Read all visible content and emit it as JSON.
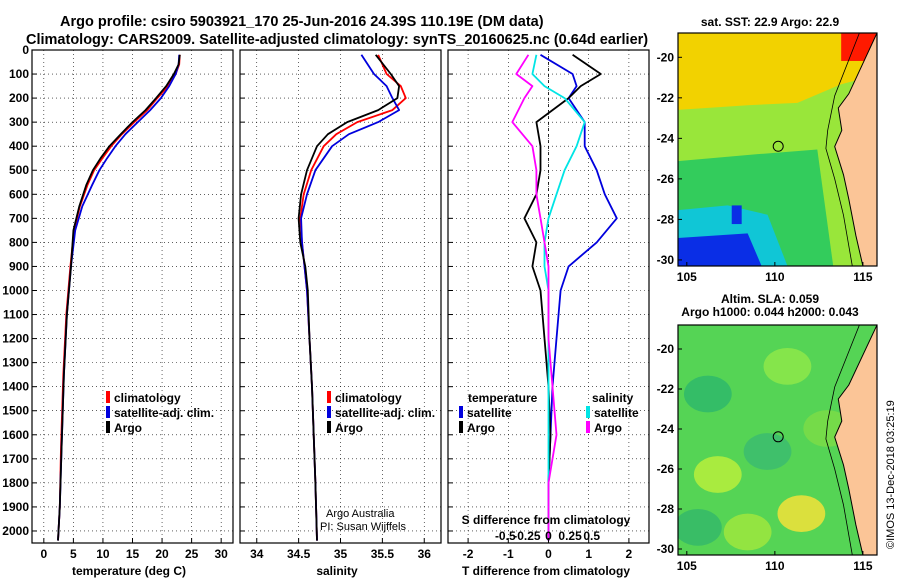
{
  "header": {
    "title_line1": "Argo profile: csiro 5903921_170 25-Jun-2016 24.39S 110.19E (DM data)",
    "title_line2": "Climatology: CARS2009. Satellite-adjusted climatology: synTS_20160625.nc (0.64d earlier)"
  },
  "colors": {
    "climatology": "#ff0000",
    "satellite_adj": "#0000dd",
    "argo": "#000000",
    "sat_salinity": "#00e5e5",
    "argo_salinity": "#ff00ff",
    "land": "#fbc597",
    "sst_high": "#f2d200",
    "sst_mid": "#99e63a",
    "sst_low": "#33cc5c",
    "sst_cold": "#0a2ee6",
    "sla_base": "#55d455"
  },
  "legends": {
    "temperature": [
      {
        "label": "climatology",
        "color_key": "climatology"
      },
      {
        "label": "satellite-adj. clim.",
        "color_key": "satellite_adj"
      },
      {
        "label": "Argo",
        "color_key": "argo"
      }
    ],
    "salinity": [
      {
        "label": "climatology",
        "color_key": "climatology"
      },
      {
        "label": "satellite-adj. clim.",
        "color_key": "satellite_adj"
      },
      {
        "label": "Argo",
        "color_key": "argo"
      }
    ],
    "difference": {
      "temperature_title": "temperature",
      "salinity_title": "salinity",
      "temperature_items": [
        {
          "label": "satellite",
          "color_key": "satellite_adj"
        },
        {
          "label": "Argo",
          "color_key": "argo"
        }
      ],
      "salinity_items": [
        {
          "label": "satellite",
          "color_key": "sat_salinity"
        },
        {
          "label": "Argo",
          "color_key": "argo_salinity"
        }
      ]
    }
  },
  "credits": {
    "line1": "Argo Australia",
    "line2": "PI: Susan Wijffels",
    "stamp": "©IMOS 13-Dec-2018 03:25:19"
  },
  "maps": {
    "sst_title": "sat. SST: 22.9 Argo: 22.9",
    "sla_title1": "Altim. SLA: 0.059",
    "sla_title2": "Argo h1000: 0.044 h2000: 0.043",
    "float_position": {
      "lon": 110.19,
      "lat": -24.39
    }
  },
  "chart_data": [
    {
      "type": "line",
      "panel": "temperature",
      "xlabel": "temperature (deg C)",
      "ylabel": "",
      "xlim": [
        -2,
        32
      ],
      "ylim": [
        2050,
        0
      ],
      "xticks": [
        0,
        5,
        10,
        15,
        20,
        25,
        30
      ],
      "yticks": [
        0,
        100,
        200,
        300,
        400,
        500,
        600,
        700,
        800,
        900,
        1000,
        1100,
        1200,
        1300,
        1400,
        1500,
        1600,
        1700,
        1800,
        1900,
        2000
      ],
      "series": [
        {
          "name": "climatology",
          "color_key": "climatology",
          "x": [
            23.0,
            22.9,
            22.3,
            21.0,
            19.2,
            17.5,
            15.3,
            13.2,
            11.4,
            9.9,
            8.5,
            7.4,
            6.1,
            5.1,
            4.5,
            3.8,
            3.3,
            2.9,
            2.7,
            2.4
          ],
          "y": [
            20,
            60,
            100,
            150,
            200,
            250,
            300,
            350,
            400,
            450,
            500,
            560,
            650,
            750,
            900,
            1100,
            1350,
            1650,
            1900,
            2040
          ]
        },
        {
          "name": "satellite-adj. clim.",
          "color_key": "satellite_adj",
          "x": [
            22.9,
            22.8,
            22.3,
            21.2,
            19.8,
            18.0,
            15.9,
            13.8,
            12.1,
            10.7,
            9.4,
            8.2,
            6.5,
            5.3,
            4.6,
            3.9,
            3.4,
            3.0,
            2.7,
            2.4
          ],
          "y": [
            20,
            60,
            100,
            150,
            200,
            250,
            300,
            350,
            400,
            450,
            500,
            560,
            650,
            750,
            900,
            1100,
            1350,
            1650,
            1900,
            2040
          ]
        },
        {
          "name": "Argo",
          "color_key": "argo",
          "x": [
            23.0,
            22.8,
            22.0,
            20.7,
            19.0,
            17.2,
            15.0,
            13.0,
            11.1,
            9.6,
            8.3,
            7.2,
            6.0,
            5.0,
            4.6,
            3.9,
            3.4,
            3.0,
            2.7,
            2.4
          ],
          "y": [
            20,
            60,
            100,
            150,
            200,
            250,
            300,
            350,
            400,
            450,
            500,
            560,
            650,
            750,
            900,
            1100,
            1350,
            1650,
            1900,
            2040
          ]
        }
      ]
    },
    {
      "type": "line",
      "panel": "salinity",
      "xlabel": "salinity",
      "ylabel": "",
      "xlim": [
        33.8,
        36.2
      ],
      "ylim": [
        2050,
        0
      ],
      "xticks": [
        34,
        34.5,
        35,
        35.5,
        36
      ],
      "series": [
        {
          "name": "climatology",
          "color_key": "climatology",
          "x": [
            35.45,
            35.55,
            35.72,
            35.78,
            35.62,
            35.2,
            34.95,
            34.8,
            34.65,
            34.56,
            34.52,
            34.54,
            34.57,
            34.6,
            34.63,
            34.66,
            34.68,
            34.7,
            34.72
          ],
          "y": [
            20,
            100,
            150,
            200,
            250,
            300,
            350,
            400,
            500,
            600,
            700,
            800,
            900,
            1000,
            1200,
            1400,
            1600,
            1800,
            2040
          ]
        },
        {
          "name": "satellite-adj. clim.",
          "color_key": "satellite_adj",
          "x": [
            35.25,
            35.4,
            35.55,
            35.62,
            35.7,
            35.45,
            35.1,
            34.9,
            34.7,
            34.6,
            34.53,
            34.54,
            34.57,
            34.6,
            34.63,
            34.66,
            34.68,
            34.7,
            34.72
          ],
          "y": [
            20,
            100,
            150,
            200,
            250,
            300,
            350,
            400,
            500,
            600,
            700,
            800,
            900,
            1000,
            1200,
            1400,
            1600,
            1800,
            2040
          ]
        },
        {
          "name": "Argo",
          "color_key": "argo",
          "x": [
            35.42,
            35.6,
            35.7,
            35.68,
            35.45,
            35.08,
            34.85,
            34.72,
            34.6,
            34.53,
            34.5,
            34.52,
            34.58,
            34.61,
            34.63,
            34.66,
            34.68,
            34.7,
            34.72
          ],
          "y": [
            20,
            100,
            150,
            200,
            250,
            300,
            350,
            400,
            500,
            600,
            700,
            800,
            900,
            1000,
            1200,
            1400,
            1600,
            1800,
            2040
          ]
        }
      ]
    },
    {
      "type": "line",
      "panel": "difference",
      "xlabel": "T difference from climatology",
      "x2label": "S difference from climatology",
      "xlim": [
        -2.5,
        2.5
      ],
      "ylim": [
        2050,
        0
      ],
      "xticks": [
        -2,
        -1,
        0,
        1,
        2
      ],
      "x2ticks": [
        -0.5,
        -0.25,
        0,
        0.25,
        0.5
      ],
      "series": [
        {
          "name": "temperature satellite",
          "color_key": "satellite_adj",
          "x": [
            -0.2,
            0.6,
            0.7,
            0.5,
            0.9,
            0.9,
            1.2,
            1.4,
            1.7,
            1.2,
            0.5,
            0.3,
            0.2,
            0.1,
            0.05,
            0.0,
            0.0
          ],
          "y": [
            20,
            100,
            150,
            200,
            300,
            400,
            500,
            600,
            700,
            800,
            900,
            1000,
            1200,
            1400,
            1600,
            1800,
            2040
          ]
        },
        {
          "name": "temperature Argo",
          "color_key": "argo",
          "x": [
            0.6,
            1.3,
            0.8,
            0.5,
            -0.3,
            -0.2,
            -0.2,
            -0.3,
            -0.6,
            -0.3,
            -0.4,
            -0.2,
            -0.1,
            0.0,
            0.05,
            0.0,
            0.0
          ],
          "y": [
            20,
            100,
            150,
            200,
            300,
            400,
            500,
            600,
            700,
            800,
            900,
            1000,
            1200,
            1400,
            1600,
            1800,
            2040
          ]
        },
        {
          "name": "salinity satellite",
          "color_key": "sat_salinity",
          "x": [
            -0.3,
            -0.4,
            -0.1,
            0.4,
            0.9,
            0.7,
            0.4,
            0.2,
            0.0,
            -0.1,
            -0.1,
            0.0,
            0.0,
            0.0,
            0.0,
            0.0,
            0.0
          ],
          "y": [
            20,
            100,
            150,
            200,
            300,
            400,
            500,
            600,
            700,
            800,
            900,
            1000,
            1200,
            1400,
            1600,
            1800,
            2040
          ]
        },
        {
          "name": "salinity Argo",
          "color_key": "argo_salinity",
          "x": [
            -0.5,
            -0.8,
            -0.4,
            -0.6,
            -0.9,
            -0.4,
            -0.3,
            -0.3,
            -0.2,
            -0.1,
            0.0,
            0.0,
            0.0,
            0.1,
            0.2,
            0.0,
            0.0
          ],
          "y": [
            20,
            100,
            150,
            200,
            300,
            400,
            500,
            600,
            700,
            800,
            900,
            1000,
            1200,
            1400,
            1600,
            1800,
            2040
          ]
        }
      ]
    },
    {
      "type": "heatmap",
      "panel": "sat_sst_map",
      "xlim": [
        104.5,
        115.8
      ],
      "ylim": [
        -30.3,
        -18.8
      ],
      "xticks": [
        105,
        110,
        115
      ],
      "yticks": [
        -20,
        -22,
        -24,
        -26,
        -28,
        -30
      ]
    },
    {
      "type": "heatmap",
      "panel": "altim_sla_map",
      "xlim": [
        104.5,
        115.8
      ],
      "ylim": [
        -30.3,
        -18.8
      ],
      "xticks": [
        105,
        110,
        115
      ],
      "yticks": [
        -20,
        -22,
        -24,
        -26,
        -28,
        -30
      ]
    }
  ]
}
